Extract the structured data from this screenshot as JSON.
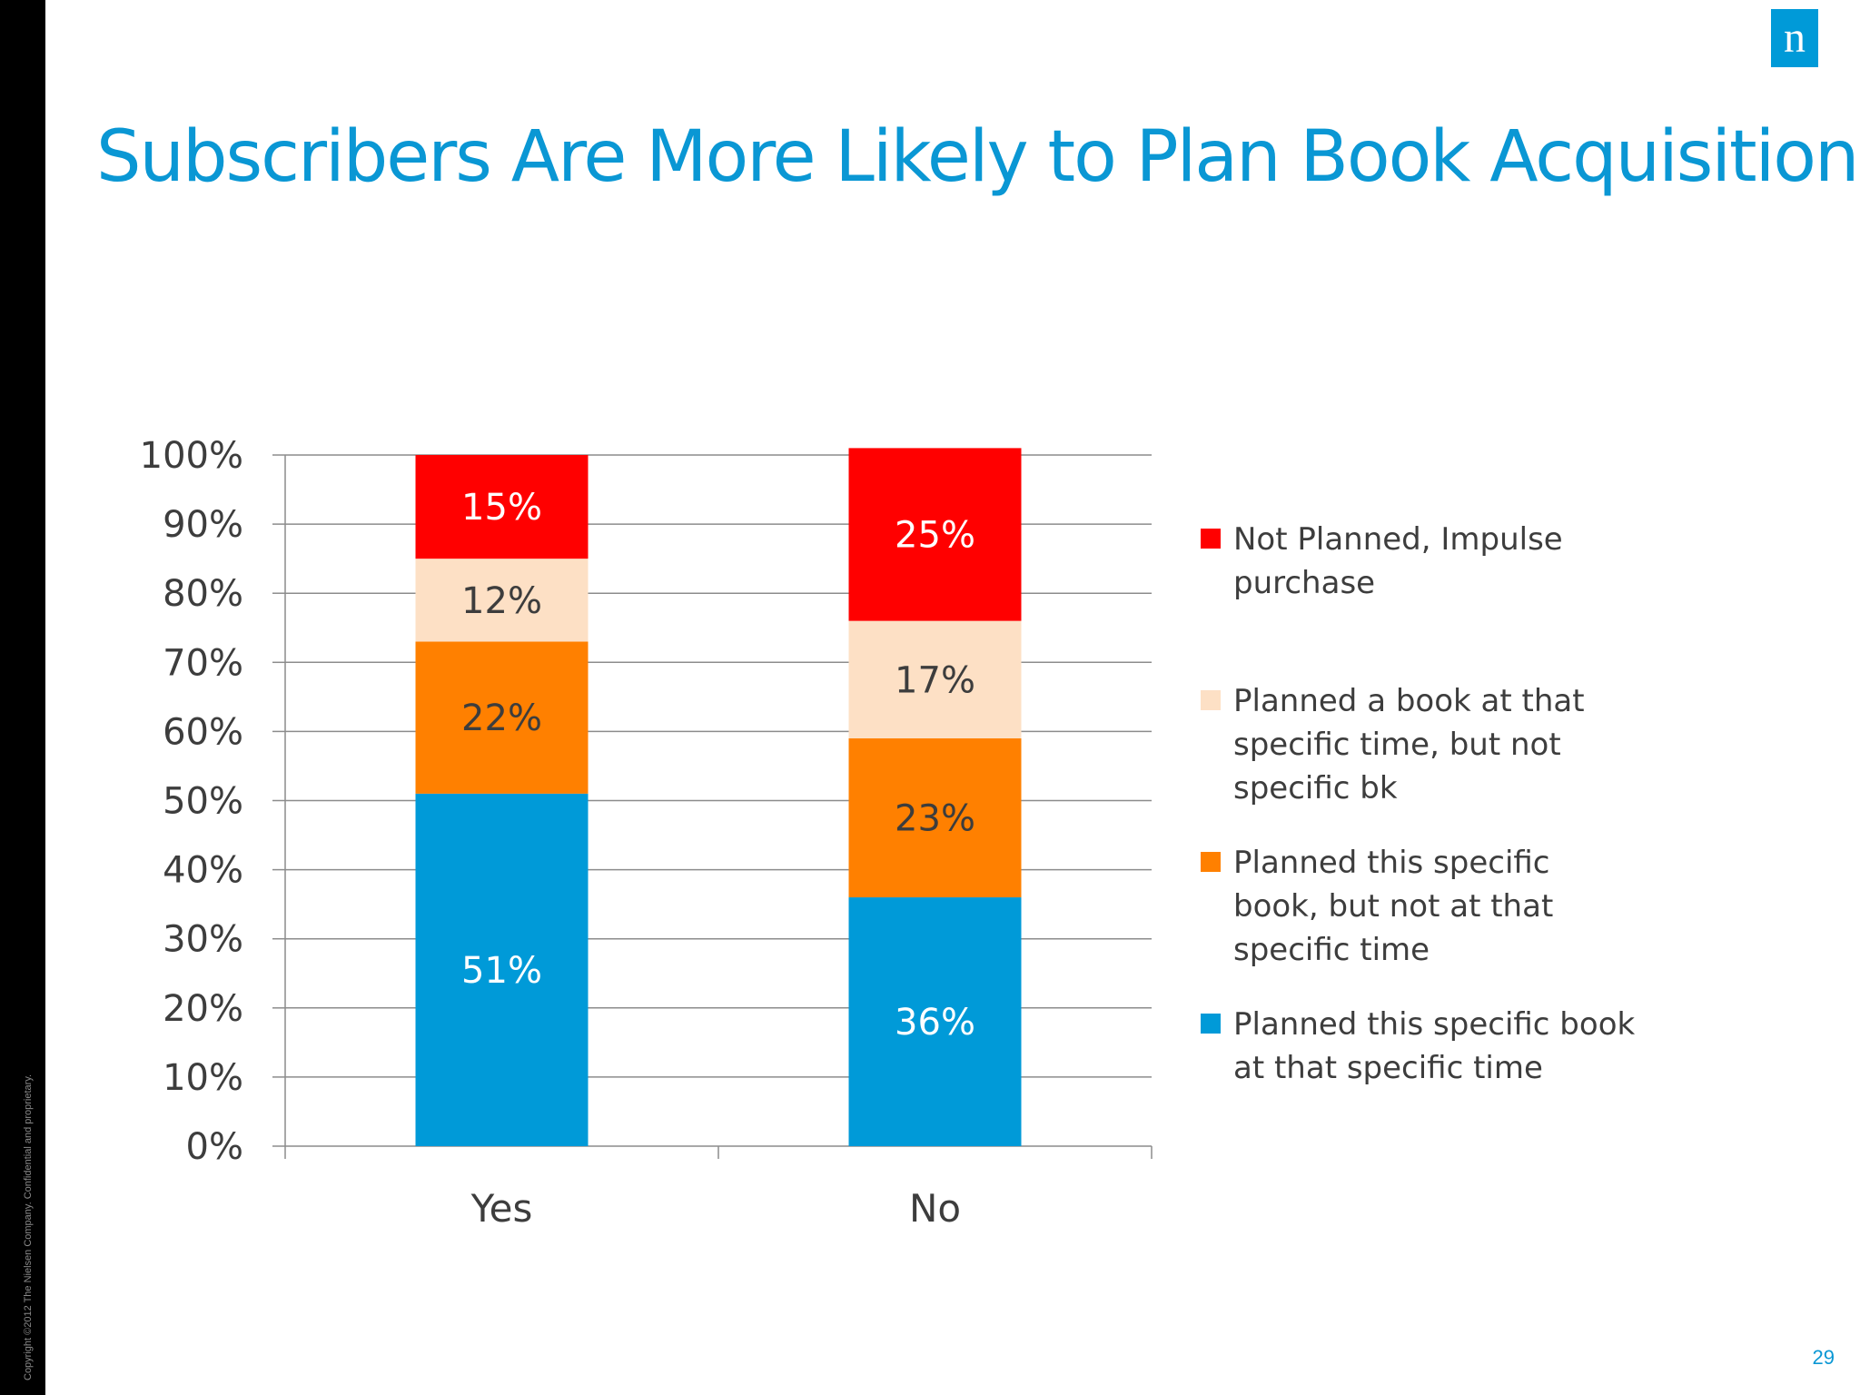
{
  "slide": {
    "title": "Subscribers Are More Likely to Plan Book Acquisition",
    "copyright": "Copyright ©2012 The Nielsen Company. Confidential and proprietary.",
    "page_number": "29",
    "logo_text": "n"
  },
  "chart_data": {
    "type": "bar",
    "stacked": true,
    "categories": [
      "Yes",
      "No"
    ],
    "yticks": [
      "0%",
      "10%",
      "20%",
      "30%",
      "40%",
      "50%",
      "60%",
      "70%",
      "80%",
      "90%",
      "100%"
    ],
    "ylim": [
      0,
      100
    ],
    "grid": true,
    "legend_position": "right",
    "series": [
      {
        "name": "Planned this specific book at that specific time",
        "values": [
          51,
          36
        ],
        "labels": [
          "51%",
          "36%"
        ],
        "color": "#009ad8",
        "label_color": "#ffffff"
      },
      {
        "name": "Planned this specific book, but not at that specific time",
        "values": [
          22,
          23
        ],
        "labels": [
          "22%",
          "23%"
        ],
        "color": "#ff8000",
        "label_color": "#3d3d3d"
      },
      {
        "name": "Planned a book at that specific time, but not specific bk",
        "values": [
          12,
          17
        ],
        "labels": [
          "12%",
          "17%"
        ],
        "color": "#fde0c5",
        "label_color": "#3d3d3d"
      },
      {
        "name": "Not Planned, Impulse purchase",
        "values": [
          15,
          25
        ],
        "labels": [
          "15%",
          "25%"
        ],
        "color": "#ff0000",
        "label_color": "#ffffff"
      }
    ]
  }
}
